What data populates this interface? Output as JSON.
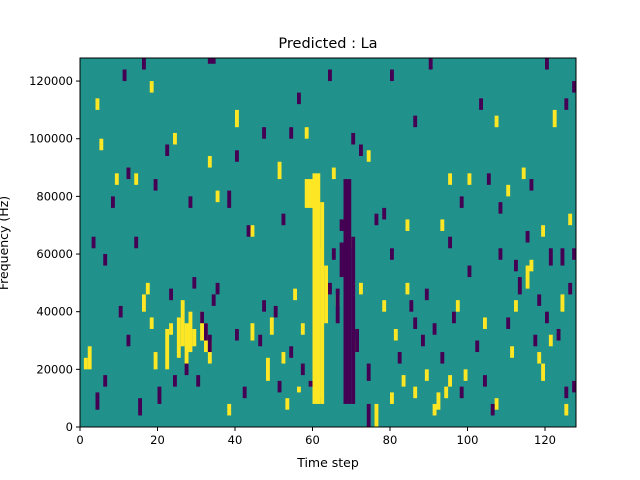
{
  "chart_data": {
    "type": "heatmap",
    "title": "Predicted : La",
    "xlabel": "Time step",
    "ylabel": "Frequency (Hz)",
    "xlim": [
      0,
      128
    ],
    "ylim": [
      0,
      128000
    ],
    "x_ticks": [
      0,
      20,
      40,
      60,
      80,
      100,
      120
    ],
    "y_ticks": [
      0,
      20000,
      40000,
      60000,
      80000,
      100000,
      120000
    ],
    "x_tick_labels": [
      "0",
      "20",
      "40",
      "60",
      "80",
      "100",
      "120"
    ],
    "y_tick_labels": [
      "0",
      "20000",
      "40000",
      "60000",
      "80000",
      "100000",
      "120000"
    ],
    "grid": false,
    "colormap": "viridis",
    "levels": [
      "low",
      "mid",
      "high"
    ],
    "level_colors": {
      "low": "#440154",
      "mid": "#21918c",
      "high": "#fde725"
    },
    "background_level": "mid",
    "cells_high": [
      [
        60,
        8000,
        62,
        88000
      ],
      [
        62,
        8000,
        63,
        78000
      ],
      [
        61,
        10000,
        62,
        62000
      ],
      [
        63,
        36000,
        64,
        56000
      ],
      [
        57,
        32000,
        58,
        36000
      ],
      [
        58,
        76000,
        60,
        86000
      ],
      [
        65,
        86000,
        66,
        90000
      ],
      [
        25,
        24000,
        26,
        38000
      ],
      [
        26,
        28000,
        27,
        44000
      ],
      [
        27,
        22000,
        28,
        36000
      ],
      [
        28,
        26000,
        29,
        40000
      ],
      [
        29,
        28000,
        30,
        34000
      ],
      [
        23,
        32000,
        24,
        36000
      ],
      [
        22,
        20000,
        23,
        34000
      ],
      [
        2,
        20000,
        3,
        28000
      ],
      [
        1,
        20000,
        2,
        24000
      ],
      [
        16,
        40000,
        17,
        46000
      ],
      [
        17,
        46000,
        18,
        50000
      ],
      [
        18,
        34000,
        19,
        38000
      ],
      [
        19,
        20000,
        20,
        26000
      ],
      [
        38,
        4000,
        39,
        8000
      ],
      [
        44,
        30000,
        45,
        36000
      ],
      [
        48,
        16000,
        49,
        24000
      ],
      [
        49,
        32000,
        50,
        38000
      ],
      [
        55,
        44000,
        56,
        48000
      ],
      [
        56,
        12000,
        57,
        14000
      ],
      [
        53,
        6000,
        54,
        10000
      ],
      [
        52,
        22000,
        53,
        26000
      ],
      [
        66,
        42000,
        67,
        46000
      ],
      [
        69,
        62000,
        70,
        66000
      ],
      [
        71,
        26000,
        72,
        30000
      ],
      [
        72,
        46000,
        73,
        50000
      ],
      [
        76,
        0,
        77,
        8000
      ],
      [
        78,
        40000,
        79,
        44000
      ],
      [
        80,
        8000,
        81,
        12000
      ],
      [
        81,
        30000,
        82,
        34000
      ],
      [
        83,
        14000,
        84,
        18000
      ],
      [
        84,
        46000,
        85,
        50000
      ],
      [
        86,
        10000,
        87,
        14000
      ],
      [
        89,
        16000,
        90,
        20000
      ],
      [
        91,
        4000,
        92,
        8000
      ],
      [
        92,
        6000,
        93,
        12000
      ],
      [
        94,
        10000,
        95,
        14000
      ],
      [
        95,
        14000,
        96,
        18000
      ],
      [
        97,
        40000,
        98,
        44000
      ],
      [
        99,
        16000,
        100,
        20000
      ],
      [
        104,
        34000,
        105,
        38000
      ],
      [
        107,
        6000,
        108,
        10000
      ],
      [
        111,
        24000,
        112,
        28000
      ],
      [
        112,
        40000,
        113,
        44000
      ],
      [
        115,
        48000,
        116,
        56000
      ],
      [
        116,
        54000,
        117,
        58000
      ],
      [
        118,
        22000,
        119,
        26000
      ],
      [
        119,
        16000,
        120,
        22000
      ],
      [
        121,
        28000,
        122,
        32000
      ],
      [
        124,
        40000,
        125,
        46000
      ],
      [
        125,
        4000,
        126,
        8000
      ],
      [
        4,
        110000,
        5,
        114000
      ],
      [
        5,
        96000,
        6,
        100000
      ],
      [
        9,
        84000,
        10,
        88000
      ],
      [
        14,
        84000,
        15,
        88000
      ],
      [
        18,
        116000,
        19,
        120000
      ],
      [
        24,
        98000,
        25,
        102000
      ],
      [
        33,
        90000,
        34,
        94000
      ],
      [
        35,
        78000,
        36,
        82000
      ],
      [
        40,
        104000,
        41,
        110000
      ],
      [
        44,
        66000,
        45,
        70000
      ],
      [
        51,
        86000,
        52,
        92000
      ],
      [
        58,
        100000,
        59,
        104000
      ],
      [
        74,
        92000,
        75,
        96000
      ],
      [
        84,
        68000,
        85,
        72000
      ],
      [
        93,
        68000,
        94,
        72000
      ],
      [
        95,
        84000,
        96,
        88000
      ],
      [
        100,
        84000,
        101,
        88000
      ],
      [
        107,
        104000,
        108,
        108000
      ],
      [
        110,
        80000,
        111,
        84000
      ],
      [
        114,
        86000,
        115,
        90000
      ],
      [
        119,
        66000,
        120,
        70000
      ],
      [
        122,
        104000,
        123,
        110000
      ],
      [
        126,
        70000,
        127,
        74000
      ],
      [
        31,
        30000,
        32,
        40000
      ],
      [
        32,
        26000,
        33,
        36000
      ],
      [
        33,
        22000,
        34,
        30000
      ]
    ],
    "cells_low": [
      [
        68,
        8000,
        70,
        86000
      ],
      [
        70,
        8000,
        71,
        66000
      ],
      [
        67,
        52000,
        68,
        64000
      ],
      [
        66,
        36000,
        67,
        48000
      ],
      [
        64,
        46000,
        65,
        50000
      ],
      [
        67,
        68000,
        68,
        72000
      ],
      [
        65,
        58000,
        66,
        62000
      ],
      [
        71,
        26000,
        72,
        34000
      ],
      [
        70,
        98000,
        71,
        102000
      ],
      [
        74,
        0,
        75,
        8000
      ],
      [
        74,
        16000,
        75,
        22000
      ],
      [
        32,
        30000,
        33,
        36000
      ],
      [
        33,
        26000,
        34,
        32000
      ],
      [
        34,
        42000,
        35,
        46000
      ],
      [
        35,
        46000,
        36,
        50000
      ],
      [
        33,
        126000,
        35,
        128000
      ],
      [
        31,
        36000,
        32,
        40000
      ],
      [
        40,
        30000,
        41,
        34000
      ],
      [
        42,
        10000,
        43,
        14000
      ],
      [
        46,
        28000,
        47,
        32000
      ],
      [
        47,
        40000,
        48,
        44000
      ],
      [
        50,
        38000,
        51,
        42000
      ],
      [
        51,
        12000,
        52,
        16000
      ],
      [
        54,
        24000,
        55,
        28000
      ],
      [
        57,
        18000,
        58,
        22000
      ],
      [
        59,
        14000,
        60,
        16000
      ],
      [
        4,
        6000,
        5,
        12000
      ],
      [
        6,
        14000,
        7,
        18000
      ],
      [
        10,
        38000,
        11,
        42000
      ],
      [
        12,
        28000,
        13,
        32000
      ],
      [
        15,
        4000,
        16,
        10000
      ],
      [
        20,
        8000,
        21,
        14000
      ],
      [
        24,
        14000,
        25,
        18000
      ],
      [
        27,
        18000,
        28,
        22000
      ],
      [
        29,
        48000,
        30,
        52000
      ],
      [
        30,
        14000,
        31,
        18000
      ],
      [
        78,
        72000,
        79,
        76000
      ],
      [
        80,
        58000,
        81,
        62000
      ],
      [
        82,
        22000,
        83,
        26000
      ],
      [
        85,
        40000,
        86,
        44000
      ],
      [
        86,
        34000,
        87,
        38000
      ],
      [
        88,
        28000,
        89,
        32000
      ],
      [
        89,
        44000,
        90,
        48000
      ],
      [
        91,
        32000,
        92,
        36000
      ],
      [
        93,
        22000,
        94,
        26000
      ],
      [
        95,
        62000,
        96,
        66000
      ],
      [
        96,
        36000,
        97,
        40000
      ],
      [
        98,
        10000,
        99,
        14000
      ],
      [
        100,
        52000,
        101,
        56000
      ],
      [
        102,
        26000,
        103,
        30000
      ],
      [
        104,
        14000,
        105,
        18000
      ],
      [
        106,
        4000,
        107,
        8000
      ],
      [
        108,
        58000,
        109,
        62000
      ],
      [
        110,
        34000,
        111,
        38000
      ],
      [
        112,
        54000,
        113,
        58000
      ],
      [
        113,
        46000,
        114,
        52000
      ],
      [
        115,
        64000,
        116,
        68000
      ],
      [
        117,
        28000,
        118,
        32000
      ],
      [
        118,
        42000,
        119,
        46000
      ],
      [
        120,
        36000,
        121,
        40000
      ],
      [
        121,
        56000,
        122,
        62000
      ],
      [
        123,
        30000,
        124,
        34000
      ],
      [
        124,
        56000,
        125,
        62000
      ],
      [
        126,
        46000,
        127,
        50000
      ],
      [
        127,
        58000,
        128,
        62000
      ],
      [
        125,
        10000,
        126,
        14000
      ],
      [
        127,
        12000,
        128,
        16000
      ],
      [
        8,
        76000,
        9,
        80000
      ],
      [
        12,
        86000,
        13,
        90000
      ],
      [
        19,
        82000,
        20,
        86000
      ],
      [
        22,
        94000,
        23,
        98000
      ],
      [
        28,
        76000,
        29,
        80000
      ],
      [
        38,
        76000,
        39,
        82000
      ],
      [
        40,
        92000,
        41,
        96000
      ],
      [
        43,
        66000,
        44,
        70000
      ],
      [
        47,
        100000,
        48,
        104000
      ],
      [
        52,
        70000,
        53,
        74000
      ],
      [
        54,
        100000,
        55,
        104000
      ],
      [
        56,
        112000,
        57,
        116000
      ],
      [
        64,
        120000,
        65,
        124000
      ],
      [
        72,
        94000,
        73,
        98000
      ],
      [
        76,
        70000,
        77,
        74000
      ],
      [
        80,
        120000,
        81,
        124000
      ],
      [
        86,
        104000,
        87,
        108000
      ],
      [
        90,
        124000,
        91,
        128000
      ],
      [
        98,
        76000,
        99,
        80000
      ],
      [
        103,
        110000,
        104,
        114000
      ],
      [
        105,
        84000,
        106,
        88000
      ],
      [
        108,
        74000,
        109,
        78000
      ],
      [
        116,
        82000,
        117,
        86000
      ],
      [
        120,
        124000,
        121,
        128000
      ],
      [
        125,
        110000,
        126,
        114000
      ],
      [
        127,
        116000,
        128,
        120000
      ],
      [
        16,
        124000,
        17,
        128000
      ],
      [
        11,
        120000,
        12,
        124000
      ],
      [
        3,
        62000,
        4,
        66000
      ],
      [
        6,
        56000,
        7,
        60000
      ],
      [
        14,
        62000,
        15,
        66000
      ],
      [
        23,
        44000,
        24,
        48000
      ]
    ]
  }
}
